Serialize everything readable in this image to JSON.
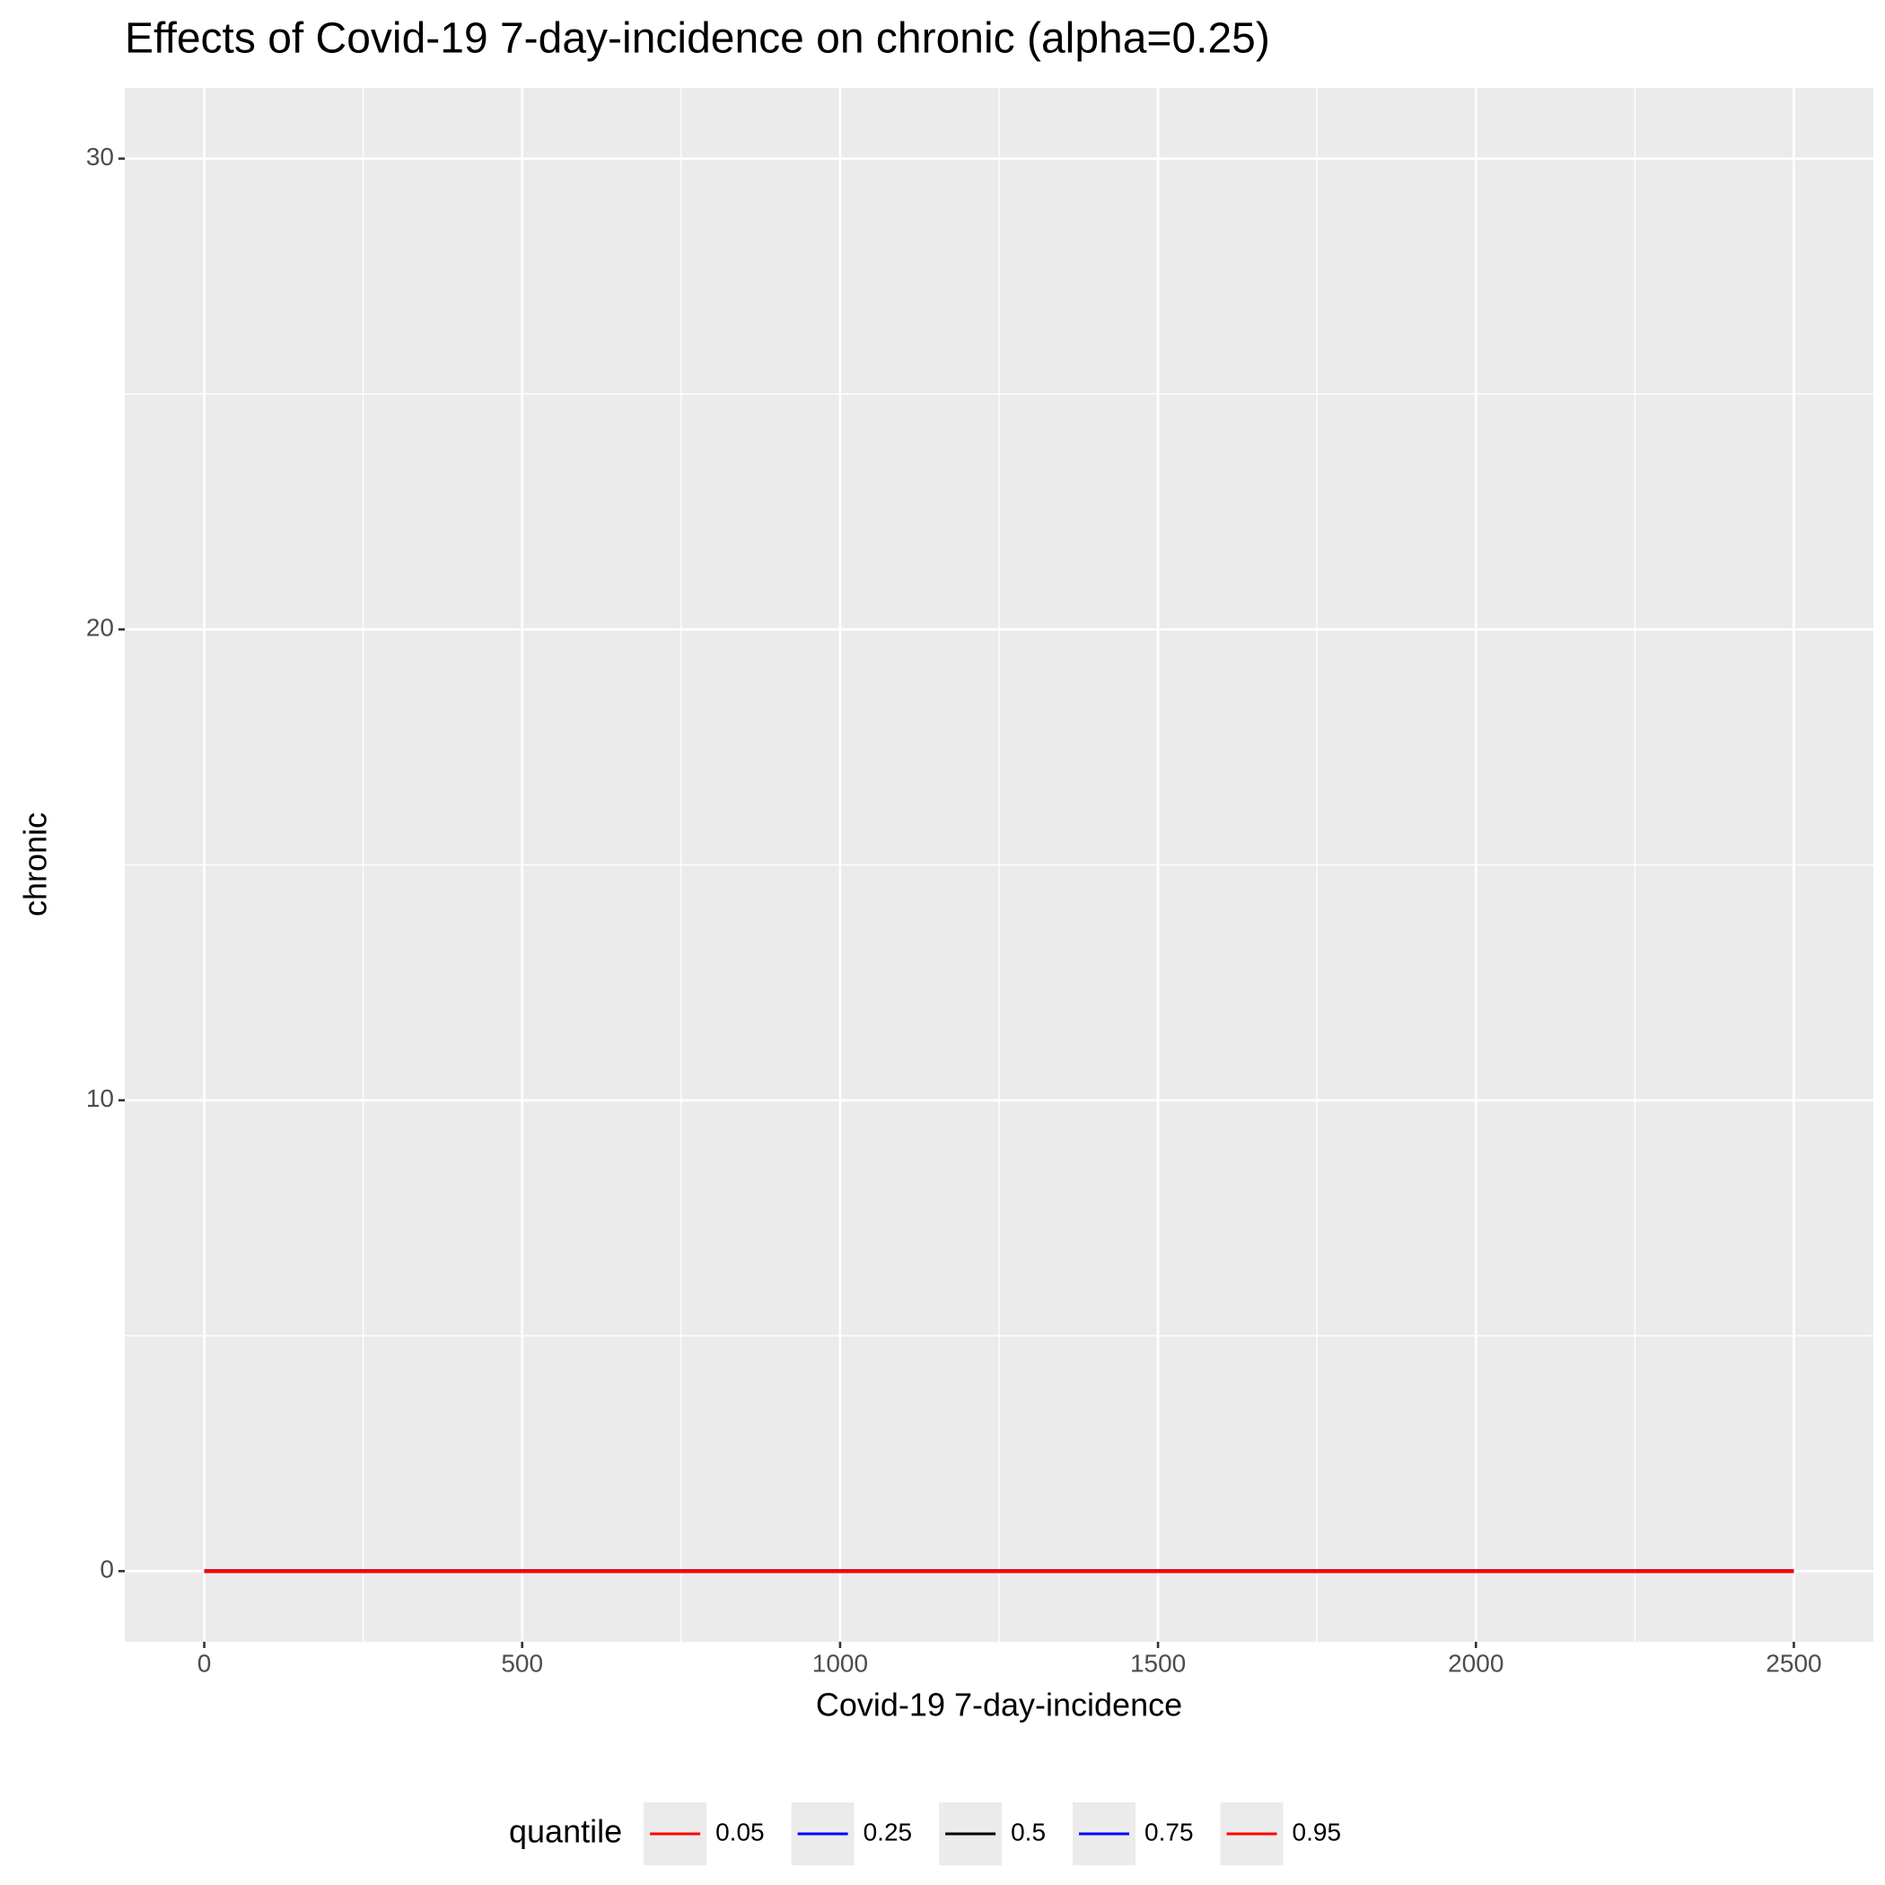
{
  "chart_data": {
    "type": "line",
    "title": "Effects of Covid-19 7-day-incidence on chronic (alpha=0.25)",
    "x_label": "Covid-19 7-day-incidence",
    "y_label": "chronic",
    "x": [
      0,
      2500
    ],
    "series": [
      {
        "name": "0.05",
        "color": "#ff0000",
        "values": [
          0,
          0
        ]
      },
      {
        "name": "0.25",
        "color": "#0000ff",
        "values": [
          0,
          0
        ]
      },
      {
        "name": "0.5",
        "color": "#000000",
        "values": [
          0,
          0
        ]
      },
      {
        "name": "0.75",
        "color": "#0000ff",
        "values": [
          0,
          0
        ]
      },
      {
        "name": "0.95",
        "color": "#ff0000",
        "values": [
          0,
          0
        ]
      }
    ],
    "xlim": [
      -125,
      2625
    ],
    "xticks": [
      0,
      500,
      1000,
      1500,
      2000,
      2500
    ],
    "ylim": [
      -1.5,
      31.5
    ],
    "yticks": [
      0,
      10,
      20,
      30
    ],
    "grid": true,
    "legend_title": "quantile",
    "legend_position": "bottom"
  }
}
